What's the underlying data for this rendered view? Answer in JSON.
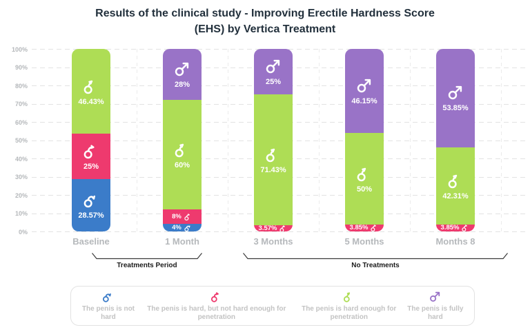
{
  "title": {
    "line1": "Results of the clinical study - Improving Erectile Hardness Score",
    "line2": "(EHS) by Vertica Treatment"
  },
  "colors": {
    "not_hard": "#3b7cc9",
    "semi_hard": "#ee3a6e",
    "hard_enough": "#aedd55",
    "fully_hard": "#9973c7",
    "title": "#22303c",
    "axis": "#b5b8bb",
    "grid": "#e2e2e2",
    "grid2": "#ebebeb",
    "legend": "#c3c3c3",
    "bracket": "#3a3a3a"
  },
  "chart_data": {
    "type": "bar",
    "stacked": true,
    "title": "Results of the clinical study - Improving Erectile Hardness Score (EHS) by Vertica Treatment",
    "ylim": [
      0,
      100
    ],
    "grid": "dashed horizontal",
    "legend_position": "bottom",
    "yticks": [
      "0%",
      "10%",
      "20%",
      "30%",
      "40%",
      "50%",
      "60%",
      "70%",
      "80%",
      "90%",
      "100%"
    ],
    "categories": [
      "Baseline",
      "1 Month",
      "3 Months",
      "5 Months",
      "Months 8"
    ],
    "series": [
      {
        "key": "not_hard",
        "name": "The penis is not hard",
        "icon": "mars-down-icon",
        "values": [
          28.57,
          4,
          0,
          0,
          0
        ],
        "labels": [
          "28.57%",
          "4%",
          "",
          "",
          ""
        ]
      },
      {
        "key": "semi_hard",
        "name": "The penis is hard, but not hard enough for penetration",
        "icon": "mars-curve-icon",
        "values": [
          25,
          8,
          3.57,
          3.85,
          3.85
        ],
        "labels": [
          "25%",
          "8%",
          "3.57%",
          "3.85%",
          "3.85%"
        ]
      },
      {
        "key": "hard_enough",
        "name": "The penis is hard enough for penetration",
        "icon": "mars-bent-icon",
        "values": [
          46.43,
          60,
          71.43,
          50,
          42.31
        ],
        "labels": [
          "46.43%",
          "60%",
          "71.43%",
          "50%",
          "42.31%"
        ]
      },
      {
        "key": "fully_hard",
        "name": "The penis is fully hard",
        "icon": "mars-up-icon",
        "values": [
          0,
          28,
          25,
          46.15,
          53.85
        ],
        "labels": [
          "",
          "28%",
          "25%",
          "46.15%",
          "53.85%"
        ]
      }
    ],
    "annotations": [
      {
        "label": "Treatments Period",
        "span": [
          0,
          1
        ]
      },
      {
        "label": "No Treatments",
        "span": [
          2,
          4
        ]
      }
    ]
  },
  "legend": {
    "items": [
      {
        "icon": "mars-down-icon",
        "key": "not_hard",
        "label": "The penis is not hard"
      },
      {
        "icon": "mars-curve-icon",
        "key": "semi_hard",
        "label": "The penis is hard, but not hard enough for penetration"
      },
      {
        "icon": "mars-bent-icon",
        "key": "hard_enough",
        "label": "The penis is hard enough for penetration"
      },
      {
        "icon": "mars-up-icon",
        "key": "fully_hard",
        "label": "The penis is fully hard"
      }
    ]
  }
}
